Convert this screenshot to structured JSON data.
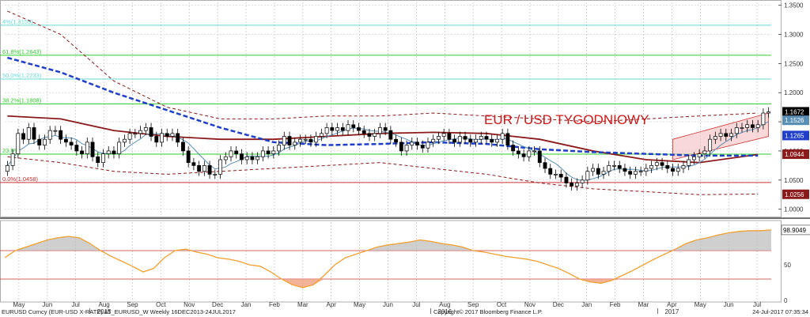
{
  "title": "EUR / USD TYGODNIOWY",
  "footer": {
    "security": "EURUSD Curncy (EUR-USD X-RATE) AT_EURUSD_W  Weekly 16DEC2013-24JUL2017",
    "copyright": "Copyright© 2017 Bloomberg Finance L.P.",
    "timestamp": "24-Jul-2017 07:35:34"
  },
  "colors": {
    "candle_up": "#ffffff",
    "candle_down": "#000000",
    "ma_long": "#1f3fc9",
    "ma_mid": "#8b1a1a",
    "ma_short": "#5a8fb5",
    "envelope": "#8b1a1a",
    "fib_green": "#2ecc2e",
    "fib_cyan": "#66d9d9",
    "fib_red": "#cc3333",
    "channel": "#f2b8b8"
  },
  "chart_data": [
    {
      "type": "candlestick",
      "title": "EUR / USD TYGODNIOWY",
      "ylim": [
        0.99,
        1.355
      ],
      "y_ticks": [
        1.0,
        1.05,
        1.1,
        1.15,
        1.2,
        1.25,
        1.3,
        1.35
      ],
      "y_tick_labels": [
        "1.0000",
        "1.0500",
        "1.1000",
        "1.1500",
        "1.2000",
        "1.2500",
        "1.3000",
        "1.3500"
      ],
      "x_month_labels": [
        "May",
        "Jun",
        "Jul",
        "Aug",
        "Sep",
        "Oct",
        "Nov",
        "Dec",
        "Jan",
        "Feb",
        "Mar",
        "Apr",
        "May",
        "Jun",
        "Jul",
        "Aug",
        "Sep",
        "Oct",
        "Nov",
        "Dec",
        "Jan",
        "Feb",
        "Mar",
        "Apr",
        "May",
        "Jun",
        "Jul"
      ],
      "x_year_labels": [
        {
          "label": "2015",
          "after_month_index": 3
        },
        {
          "label": "2016",
          "after_month_index": 15
        },
        {
          "label": "2017",
          "after_month_index": 23
        }
      ],
      "fib_levels": [
        {
          "label": "4%(1.3159)",
          "value": 1.3159,
          "color": "#66d9d9"
        },
        {
          "label": "61.8%(1.2643)",
          "value": 1.2643,
          "color": "#2ecc2e"
        },
        {
          "label": "50.0%(1.2233)",
          "value": 1.2233,
          "color": "#66d9d9"
        },
        {
          "label": "38.2%(1.1808)",
          "value": 1.1808,
          "color": "#2ecc2e"
        },
        {
          "label": "23.6%",
          "value": 1.0944,
          "color": "#2ecc2e"
        },
        {
          "label": "0.0%(1.0458)",
          "value": 1.0458,
          "color": "#cc3333"
        }
      ],
      "price_badges": [
        {
          "label": "1.1672",
          "value": 1.1672,
          "bg": "#000000",
          "fg": "#ffffff"
        },
        {
          "label": "1.1526",
          "value": 1.1526,
          "bg": "#5a8fb5",
          "fg": "#ffffff"
        },
        {
          "label": "1.1265",
          "value": 1.1265,
          "bg": "#1f3fc9",
          "fg": "#ffffff"
        },
        {
          "label": "1.0944",
          "value": 1.0944,
          "bg": "#8b1a1a",
          "fg": "#ffffff"
        },
        {
          "label": "1.0256",
          "value": 1.0256,
          "bg": "#8b1a1a",
          "fg": "#ffffff"
        }
      ],
      "closes": [
        1.075,
        1.095,
        1.13,
        1.12,
        1.14,
        1.12,
        1.11,
        1.12,
        1.135,
        1.135,
        1.12,
        1.115,
        1.11,
        1.1,
        1.095,
        1.115,
        1.09,
        1.08,
        1.095,
        1.1,
        1.095,
        1.115,
        1.12,
        1.13,
        1.13,
        1.135,
        1.14,
        1.125,
        1.115,
        1.13,
        1.125,
        1.13,
        1.115,
        1.1,
        1.08,
        1.075,
        1.065,
        1.075,
        1.06,
        1.06,
        1.085,
        1.09,
        1.1,
        1.095,
        1.085,
        1.09,
        1.085,
        1.09,
        1.1,
        1.095,
        1.1,
        1.11,
        1.125,
        1.11,
        1.115,
        1.12,
        1.12,
        1.115,
        1.125,
        1.13,
        1.14,
        1.135,
        1.14,
        1.135,
        1.145,
        1.14,
        1.135,
        1.13,
        1.125,
        1.13,
        1.14,
        1.135,
        1.12,
        1.115,
        1.1,
        1.11,
        1.115,
        1.11,
        1.105,
        1.115,
        1.12,
        1.125,
        1.13,
        1.12,
        1.115,
        1.125,
        1.12,
        1.115,
        1.12,
        1.125,
        1.12,
        1.115,
        1.12,
        1.13,
        1.11,
        1.1,
        1.095,
        1.09,
        1.1,
        1.1,
        1.08,
        1.07,
        1.06,
        1.06,
        1.055,
        1.045,
        1.04,
        1.045,
        1.05,
        1.065,
        1.07,
        1.06,
        1.065,
        1.075,
        1.075,
        1.07,
        1.065,
        1.06,
        1.065,
        1.065,
        1.07,
        1.075,
        1.08,
        1.075,
        1.07,
        1.065,
        1.07,
        1.075,
        1.085,
        1.09,
        1.095,
        1.1,
        1.12,
        1.125,
        1.13,
        1.125,
        1.13,
        1.14,
        1.14,
        1.145,
        1.14,
        1.145,
        1.165,
        1.167
      ],
      "ma_long_points": [
        [
          0,
          1.26
        ],
        [
          10,
          1.235
        ],
        [
          20,
          1.2
        ],
        [
          30,
          1.17
        ],
        [
          40,
          1.14
        ],
        [
          50,
          1.115
        ],
        [
          60,
          1.11
        ],
        [
          70,
          1.112
        ],
        [
          80,
          1.115
        ],
        [
          90,
          1.112
        ],
        [
          100,
          1.103
        ],
        [
          110,
          1.098
        ],
        [
          120,
          1.095
        ],
        [
          130,
          1.092
        ],
        [
          141,
          1.092
        ]
      ],
      "ma_mid_points": [
        [
          0,
          1.16
        ],
        [
          10,
          1.155
        ],
        [
          20,
          1.135
        ],
        [
          30,
          1.125
        ],
        [
          40,
          1.12
        ],
        [
          50,
          1.12
        ],
        [
          60,
          1.125
        ],
        [
          70,
          1.13
        ],
        [
          80,
          1.132
        ],
        [
          90,
          1.13
        ],
        [
          100,
          1.12
        ],
        [
          110,
          1.1
        ],
        [
          120,
          1.085
        ],
        [
          130,
          1.08
        ],
        [
          141,
          1.094
        ]
      ],
      "env_upper_points": [
        [
          0,
          1.34
        ],
        [
          10,
          1.3
        ],
        [
          20,
          1.22
        ],
        [
          30,
          1.175
        ],
        [
          40,
          1.155
        ],
        [
          50,
          1.155
        ],
        [
          60,
          1.16
        ],
        [
          70,
          1.16
        ],
        [
          80,
          1.165
        ],
        [
          90,
          1.16
        ],
        [
          100,
          1.155
        ],
        [
          110,
          1.15
        ],
        [
          120,
          1.155
        ],
        [
          130,
          1.16
        ],
        [
          141,
          1.165
        ]
      ],
      "env_lower_points": [
        [
          0,
          1.09
        ],
        [
          10,
          1.08
        ],
        [
          20,
          1.065
        ],
        [
          30,
          1.06
        ],
        [
          40,
          1.065
        ],
        [
          50,
          1.07
        ],
        [
          60,
          1.075
        ],
        [
          70,
          1.08
        ],
        [
          80,
          1.07
        ],
        [
          90,
          1.06
        ],
        [
          100,
          1.045
        ],
        [
          110,
          1.035
        ],
        [
          120,
          1.03
        ],
        [
          130,
          1.025
        ],
        [
          141,
          1.026
        ]
      ]
    },
    {
      "type": "area",
      "title": "",
      "ylim": [
        0,
        110
      ],
      "y_ticks": [
        0,
        50
      ],
      "y_tick_labels": [
        "0",
        "50"
      ],
      "levels": [
        70,
        30
      ],
      "last_value_label": "98.9049",
      "values": [
        60,
        70,
        75,
        80,
        85,
        88,
        90,
        88,
        80,
        70,
        62,
        55,
        48,
        40,
        45,
        60,
        70,
        72,
        68,
        65,
        60,
        58,
        55,
        50,
        48,
        40,
        30,
        22,
        18,
        22,
        35,
        50,
        60,
        65,
        70,
        75,
        78,
        80,
        82,
        85,
        83,
        80,
        78,
        75,
        70,
        68,
        65,
        62,
        60,
        58,
        55,
        50,
        45,
        38,
        30,
        26,
        24,
        28,
        35,
        42,
        50,
        58,
        65,
        72,
        80,
        85,
        88,
        92,
        95,
        97,
        98,
        98,
        99
      ]
    }
  ]
}
